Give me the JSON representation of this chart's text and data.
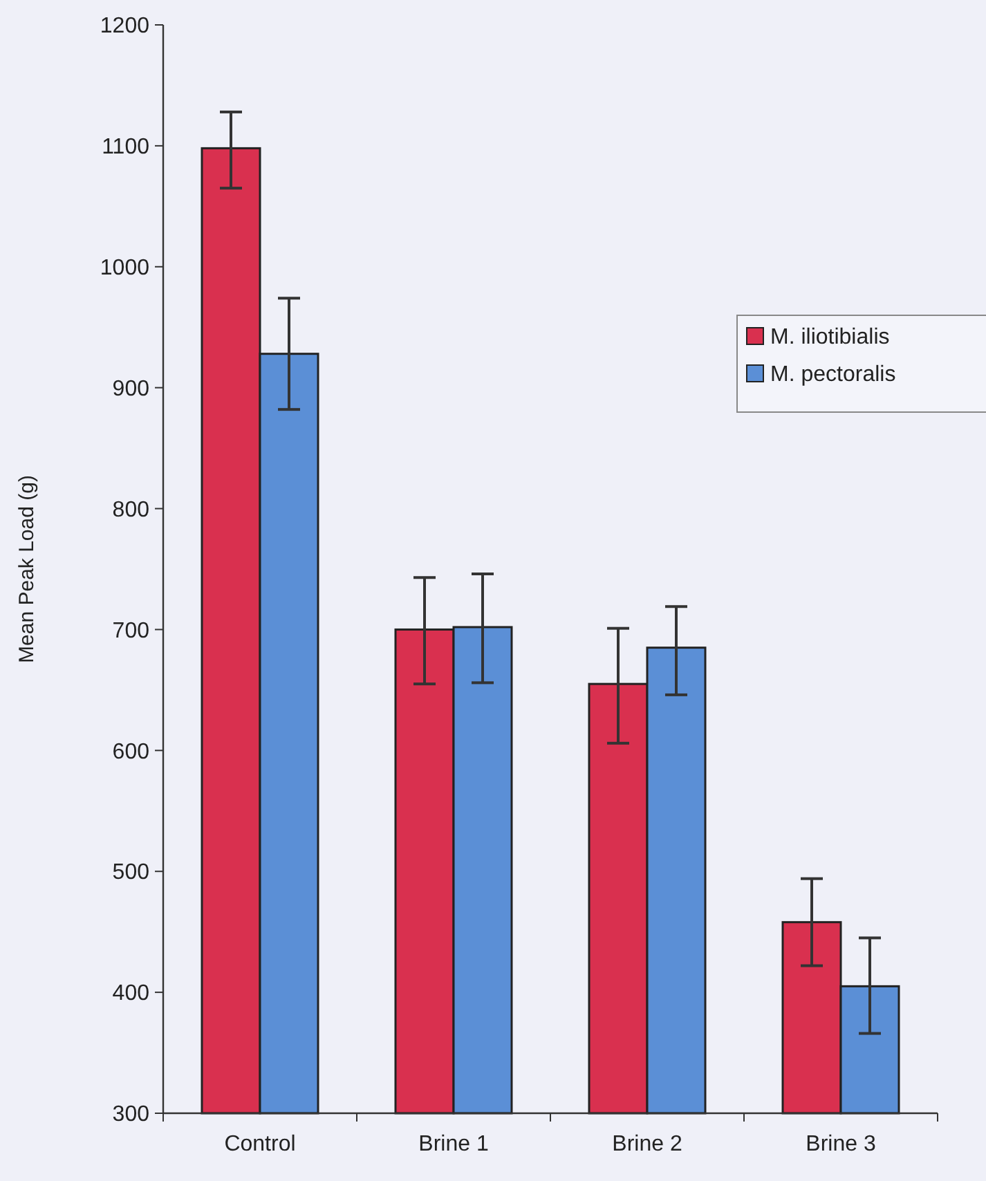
{
  "chart_data": {
    "type": "bar",
    "ylabel": "Mean Peak Load (g)",
    "categories": [
      "Control",
      "Brine 1",
      "Brine 2",
      "Brine 3"
    ],
    "series": [
      {
        "name": "M. iliotibialis",
        "color": "#d9304f",
        "values": [
          1098,
          700,
          655,
          458
        ],
        "errors": [
          [
            1065,
            1128
          ],
          [
            655,
            743
          ],
          [
            606,
            701
          ],
          [
            422,
            494
          ]
        ]
      },
      {
        "name": "M. pectoralis",
        "color": "#5b8fd6",
        "values": [
          928,
          702,
          685,
          405
        ],
        "errors": [
          [
            882,
            974
          ],
          [
            656,
            746
          ],
          [
            646,
            719
          ],
          [
            366,
            445
          ]
        ]
      }
    ],
    "ylim": [
      300,
      1200
    ],
    "yticks": [
      300,
      400,
      500,
      600,
      700,
      800,
      900,
      1000,
      1100,
      1200
    ],
    "grid": false,
    "legend": "right"
  }
}
